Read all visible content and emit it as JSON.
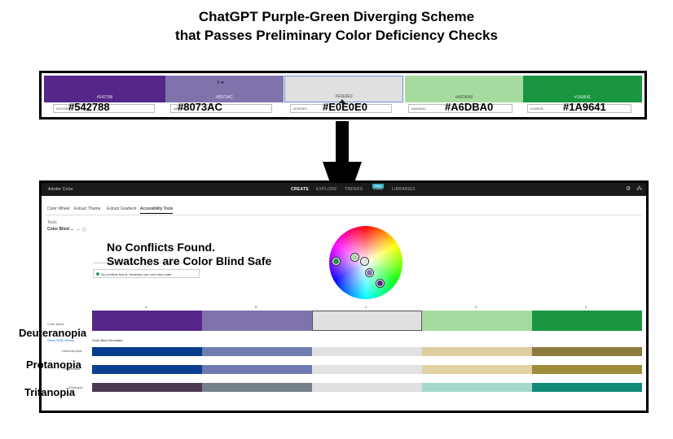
{
  "heading": {
    "line1": "ChatGPT Purple-Green Diverging Scheme",
    "line2": "that Passes Preliminary Color Deficiency Checks"
  },
  "top_swatches": [
    {
      "color": "#542788",
      "small": "#542788",
      "code": "#542788",
      "label": "#542788"
    },
    {
      "color": "#8073AC",
      "small": "#8073AC",
      "code": "#8073AC",
      "label": "#8073AC"
    },
    {
      "color": "#E0E0E0",
      "small": "#E0E0E0",
      "code": "#E0E0E0",
      "label": "#E0E0E0"
    },
    {
      "color": "#A6DBA0",
      "small": "#A6DBA0",
      "code": "#A6DBA0",
      "label": "#A6DBA0"
    },
    {
      "color": "#1A9641",
      "small": "#1A9641",
      "code": "#1A9641",
      "label": "#1A9641"
    }
  ],
  "app": {
    "brand": "Adobe Color",
    "nav": [
      "CREATE",
      "EXPLORE",
      "TRENDS",
      "LAB",
      "LIBRARIES"
    ],
    "new_badge": "New",
    "tabs": [
      "Color Wheel",
      "Extract Theme",
      "Extract Gradient",
      "Accessibility Tools"
    ],
    "tools_label": "Tools",
    "tools_value": "Color Blind ...",
    "status_small": "No conflicts found. Swatches are color blind safe",
    "letters": [
      "A",
      "B",
      "C",
      "D",
      "E"
    ],
    "color_mode_label": "Color Mode",
    "show_rgb": "Show RGB Sliders",
    "simulator_title": "Color Blind Simulator",
    "sim_rows": [
      {
        "label": "Deuteranopia",
        "colors": [
          "#053C8D",
          "#6E7DAF",
          "#E1E1E1",
          "#DCCDA0",
          "#8D7A3E"
        ]
      },
      {
        "label": "Protanopia",
        "colors": [
          "#0B3F8F",
          "#6F7BB0",
          "#E2E2E2",
          "#E0D2A2",
          "#9E8C3A"
        ]
      },
      {
        "label": "Tritanopia",
        "colors": [
          "#4A3B52",
          "#76808A",
          "#E0E0E0",
          "#A4D8CB",
          "#118A78"
        ]
      }
    ]
  },
  "annotations": {
    "no_conflicts_1": "No Conflicts Found.",
    "no_conflicts_2": "Swatches are Color Blind Safe",
    "deuteranopia": "Deuteranopia",
    "protanopia": "Protanopia",
    "tritanopia": "Tritanopia"
  }
}
